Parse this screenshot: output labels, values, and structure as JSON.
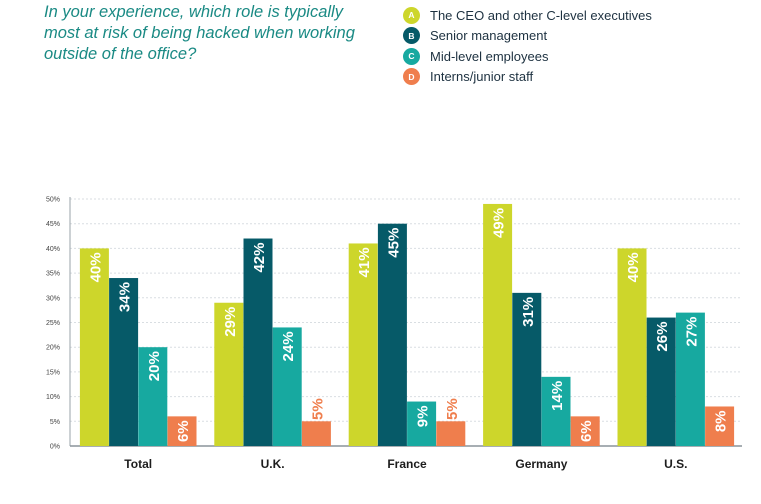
{
  "question": "In your experience, which role is typically most at risk of being hacked when working outside of the office?",
  "chart_data": {
    "type": "bar",
    "categories": [
      "Total",
      "U.K.",
      "France",
      "Germany",
      "U.S."
    ],
    "series": [
      {
        "name": "The CEO and other C-level executives",
        "letter": "A",
        "color": "#cdd62b",
        "values": [
          40,
          29,
          41,
          49,
          40
        ]
      },
      {
        "name": "Senior management",
        "letter": "B",
        "color": "#065a68",
        "values": [
          34,
          42,
          45,
          31,
          26
        ]
      },
      {
        "name": "Mid-level employees",
        "letter": "C",
        "color": "#17a9a0",
        "values": [
          20,
          24,
          9,
          14,
          27
        ]
      },
      {
        "name": "Interns/junior staff",
        "letter": "D",
        "color": "#ef7e4d",
        "values": [
          6,
          5,
          5,
          6,
          8
        ]
      }
    ],
    "yticks": [
      "0%",
      "5%",
      "10%",
      "15%",
      "20%",
      "25%",
      "30%",
      "35%",
      "40%",
      "45%",
      "50%"
    ],
    "ylim": [
      0,
      50
    ],
    "value_suffix": "%",
    "grid": true,
    "legend": "top-right"
  }
}
